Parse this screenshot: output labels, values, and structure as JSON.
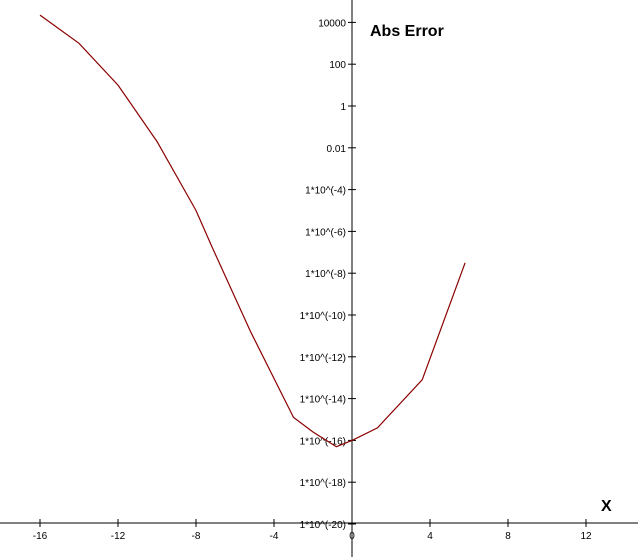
{
  "chart_data": {
    "type": "line",
    "title": "",
    "xlabel": "X",
    "ylabel": "Abs Error",
    "y_scale": "log10",
    "xlim": [
      -17.5,
      14.5
    ],
    "ylim_log10": [
      -20,
      5.5
    ],
    "x_ticks": [
      -16,
      -12,
      -8,
      -4,
      0,
      4,
      8,
      12
    ],
    "x_tick_labels": [
      "-16",
      "-12",
      "-8",
      "-4",
      "0",
      "4",
      "8",
      "12"
    ],
    "y_ticks_log10": [
      4,
      2,
      0,
      -2,
      -4,
      -6,
      -8,
      -10,
      -12,
      -14,
      -16,
      -18,
      -20
    ],
    "y_tick_labels": [
      "10000",
      "100",
      "1",
      "0.01",
      "1*10^(-4)",
      "1*10^(-6)",
      "1*10^(-8)",
      "1*10^(-10)",
      "1*10^(-12)",
      "1*10^(-14)",
      "1*10^(-16)",
      "1*10^(-18)",
      "1*10^(-20)"
    ],
    "grid": false,
    "series": [
      {
        "color": "#8b0000",
        "x": [
          -16,
          -14,
          -12,
          -10,
          -8,
          -7.2,
          -5.2,
          -3.0,
          -2.0,
          -0.8,
          0,
          1.3,
          3.6,
          5.8
        ],
        "log10_y": [
          4.35,
          3.0,
          1.0,
          -1.7,
          -5.0,
          -6.7,
          -10.8,
          -14.9,
          -15.6,
          -16.3,
          -16.0,
          -15.4,
          -13.1,
          -7.5
        ]
      }
    ]
  }
}
